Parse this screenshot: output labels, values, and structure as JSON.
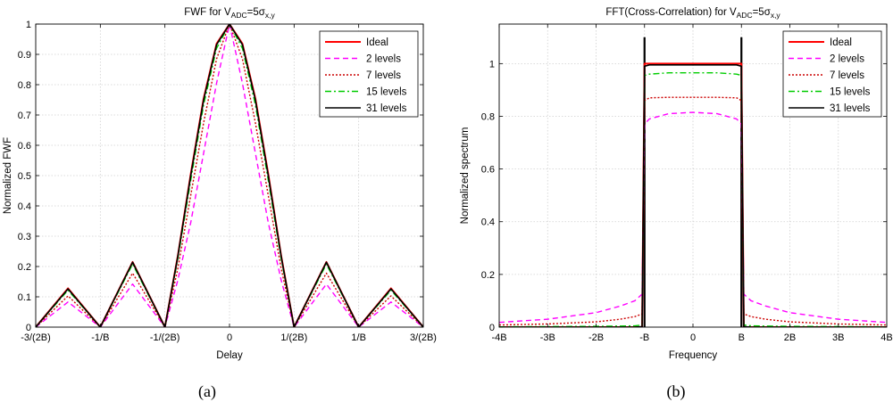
{
  "chart_data": [
    {
      "type": "line",
      "title": "FWF for V_ADC=5σ_x,y",
      "title_parts": {
        "prefix": "FWF for V",
        "sub1": "ADC",
        "mid": "=5σ",
        "sub2": "x,y"
      },
      "xlabel": "Delay",
      "ylabel": "Normalized FWF",
      "caption": "(a)",
      "xlim": [
        -1.5,
        1.5
      ],
      "ylim": [
        0,
        1
      ],
      "x_unit_note": "x in units of 1/B",
      "xticks": [
        -1.5,
        -1,
        -0.5,
        0,
        0.5,
        1,
        1.5
      ],
      "xtick_labels": [
        "-3/(2B)",
        "-1/B",
        "-1/(2B)",
        "0",
        "1/(2B)",
        "1/B",
        "3/(2B)"
      ],
      "yticks": [
        0,
        0.1,
        0.2,
        0.3,
        0.4,
        0.5,
        0.6,
        0.7,
        0.8,
        0.9,
        1
      ],
      "ytick_labels": [
        "0",
        "0.1",
        "0.2",
        "0.3",
        "0.4",
        "0.5",
        "0.6",
        "0.7",
        "0.8",
        "0.9",
        "1"
      ],
      "grid": true,
      "legend_position": "top-right",
      "x": [
        -1.5,
        -1.25,
        -1.0,
        -0.75,
        -0.5,
        -0.4,
        -0.3,
        -0.2,
        -0.1,
        0,
        0.1,
        0.2,
        0.3,
        0.4,
        0.5,
        0.75,
        1.0,
        1.25,
        1.5
      ],
      "series": [
        {
          "name": "Ideal",
          "color": "#ff0000",
          "dash": "solid",
          "width": 2,
          "values": [
            0,
            0.128,
            0,
            0.215,
            0,
            0.235,
            0.505,
            0.755,
            0.935,
            1,
            0.935,
            0.755,
            0.505,
            0.235,
            0,
            0.215,
            0,
            0.128,
            0
          ]
        },
        {
          "name": "2 levels",
          "color": "#ff00ff",
          "dash": "6 4",
          "width": 1.4,
          "values": [
            0,
            0.083,
            0,
            0.142,
            0,
            0.155,
            0.345,
            0.575,
            0.805,
            1,
            0.805,
            0.575,
            0.345,
            0.155,
            0,
            0.142,
            0,
            0.083,
            0
          ]
        },
        {
          "name": "7 levels",
          "color": "#cc0000",
          "dash": "2 2",
          "width": 1.4,
          "values": [
            0,
            0.103,
            0,
            0.178,
            0,
            0.193,
            0.435,
            0.675,
            0.885,
            1,
            0.885,
            0.675,
            0.435,
            0.193,
            0,
            0.178,
            0,
            0.103,
            0
          ]
        },
        {
          "name": "15 levels",
          "color": "#00cc00",
          "dash": "7 3 2 3",
          "width": 1.4,
          "values": [
            0,
            0.122,
            0,
            0.208,
            0,
            0.225,
            0.485,
            0.735,
            0.92,
            1,
            0.92,
            0.735,
            0.485,
            0.225,
            0,
            0.208,
            0,
            0.122,
            0
          ]
        },
        {
          "name": "31 levels",
          "color": "#000000",
          "dash": "solid",
          "width": 1.6,
          "values": [
            0,
            0.126,
            0,
            0.214,
            0,
            0.233,
            0.5,
            0.75,
            0.932,
            1,
            0.932,
            0.75,
            0.5,
            0.233,
            0,
            0.214,
            0,
            0.126,
            0
          ]
        }
      ]
    },
    {
      "type": "line",
      "title": "FFT(Cross-Correlation) for V_ADC=5σ_x,y",
      "title_parts": {
        "prefix": "FFT(Cross-Correlation) for V",
        "sub1": "ADC",
        "mid": "=5σ",
        "sub2": "x,y"
      },
      "xlabel": "Frequency",
      "ylabel": "Normalized spectrum",
      "caption": "(b)",
      "xlim": [
        -4,
        4
      ],
      "ylim": [
        0,
        1.15
      ],
      "x_unit_note": "x in units of B",
      "xticks": [
        -4,
        -3,
        -2,
        -1,
        0,
        1,
        2,
        3,
        4
      ],
      "xtick_labels": [
        "-4B",
        "-3B",
        "-2B",
        "-B",
        "0",
        "B",
        "2B",
        "3B",
        "4B"
      ],
      "yticks": [
        0,
        0.2,
        0.4,
        0.6,
        0.8,
        1
      ],
      "ytick_labels": [
        "0",
        "0.2",
        "0.4",
        "0.6",
        "0.8",
        "1"
      ],
      "grid": true,
      "legend_position": "top-right",
      "x": [
        -4,
        -3,
        -2,
        -1.5,
        -1.2,
        -1.05,
        -1.0,
        -0.9,
        -0.5,
        0,
        0.5,
        0.9,
        1.0,
        1.05,
        1.2,
        1.5,
        2,
        3,
        4
      ],
      "series": [
        {
          "name": "Ideal",
          "color": "#ff0000",
          "dash": "solid",
          "width": 2,
          "values": [
            0,
            0,
            0,
            0,
            0,
            0,
            1,
            1,
            1,
            1,
            1,
            1,
            1,
            0,
            0,
            0,
            0,
            0,
            0
          ]
        },
        {
          "name": "2 levels",
          "color": "#ff00ff",
          "dash": "6 4",
          "width": 1.4,
          "values": [
            0.018,
            0.03,
            0.055,
            0.08,
            0.1,
            0.125,
            0.77,
            0.79,
            0.81,
            0.815,
            0.81,
            0.79,
            0.77,
            0.125,
            0.1,
            0.08,
            0.055,
            0.03,
            0.018
          ]
        },
        {
          "name": "7 levels",
          "color": "#cc0000",
          "dash": "2 2",
          "width": 1.4,
          "values": [
            0.008,
            0.012,
            0.02,
            0.03,
            0.04,
            0.05,
            0.86,
            0.87,
            0.872,
            0.872,
            0.872,
            0.87,
            0.86,
            0.05,
            0.04,
            0.03,
            0.02,
            0.012,
            0.008
          ]
        },
        {
          "name": "15 levels",
          "color": "#00cc00",
          "dash": "7 3 2 3",
          "width": 1.4,
          "values": [
            0.001,
            0.002,
            0.003,
            0.004,
            0.005,
            0.008,
            0.955,
            0.96,
            0.965,
            0.965,
            0.965,
            0.96,
            0.955,
            0.008,
            0.005,
            0.004,
            0.003,
            0.002,
            0.001
          ]
        },
        {
          "name": "31 levels",
          "color": "#000000",
          "dash": "solid",
          "width": 1.6,
          "values": [
            0,
            0,
            0,
            0,
            0,
            0.002,
            0.99,
            0.995,
            0.995,
            0.995,
            0.995,
            0.995,
            0.99,
            0.002,
            0,
            0,
            0,
            0,
            0
          ]
        }
      ],
      "edge_spike_peak": 1.1
    }
  ]
}
